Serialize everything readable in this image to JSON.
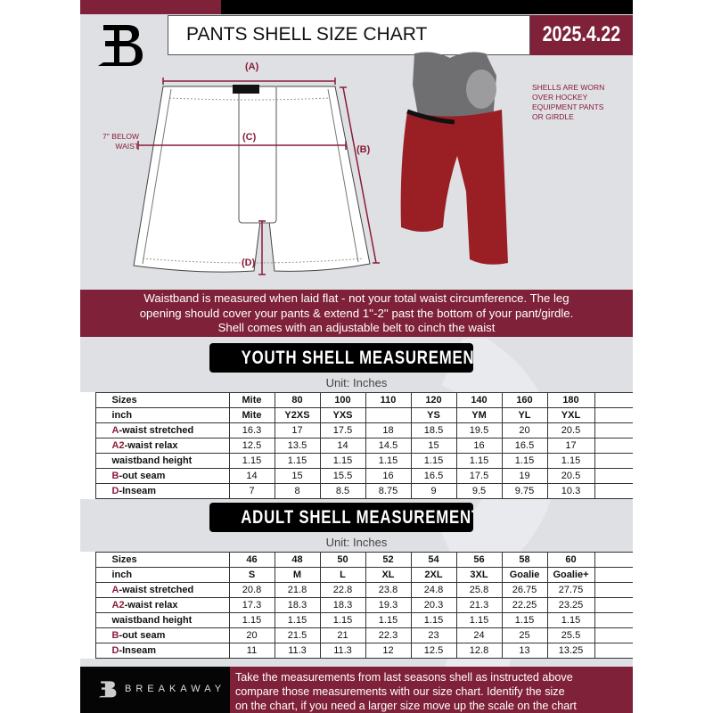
{
  "header": {
    "title": "PANTS SHELL SIZE CHART",
    "date": "2025.4.22",
    "logo_text": "B"
  },
  "diagram": {
    "label_a": "(A)",
    "label_b": "(B)",
    "label_c": "(C)",
    "label_d": "(D)",
    "c_note_line1": "7'' BELOW",
    "c_note_line2": "WAIST"
  },
  "photo_note": [
    "SHELLS ARE WORN",
    "OVER HOCKEY",
    "EQUIPMENT PANTS",
    "OR GIRDLE"
  ],
  "notice": [
    "Waistband is measured when laid flat - not your total waist circumference. The leg",
    "opening should cover your pants & extend 1''-2'' past the bottom of your pant/girdle.",
    "Shell comes with an adjustable belt to cinch the waist"
  ],
  "youth": {
    "heading": "YOUTH SHELL MEASUREMENTS",
    "unit": "Unit: Inches",
    "rows": [
      {
        "prefix": "",
        "label": "Sizes",
        "values": [
          "Mite",
          "80",
          "100",
          "110",
          "120",
          "140",
          "160",
          "180"
        ]
      },
      {
        "prefix": "",
        "label": "inch",
        "values": [
          "Mite",
          "Y2XS",
          "YXS",
          "",
          "YS",
          "YM",
          "YL",
          "YXL"
        ]
      },
      {
        "prefix": "A",
        "label": "-waist stretched",
        "values": [
          "16.3",
          "17",
          "17.5",
          "18",
          "18.5",
          "19.5",
          "20",
          "20.5"
        ]
      },
      {
        "prefix": "A2",
        "label": "-waist relax",
        "values": [
          "12.5",
          "13.5",
          "14",
          "14.5",
          "15",
          "16",
          "16.5",
          "17"
        ]
      },
      {
        "prefix": "",
        "label": "waistband height",
        "values": [
          "1.15",
          "1.15",
          "1.15",
          "1.15",
          "1.15",
          "1.15",
          "1.15",
          "1.15"
        ]
      },
      {
        "prefix": "B",
        "label": "-out seam",
        "values": [
          "14",
          "15",
          "15.5",
          "16",
          "16.5",
          "17.5",
          "19",
          "20.5"
        ]
      },
      {
        "prefix": "D",
        "label": "-Inseam",
        "values": [
          "7",
          "8",
          "8.5",
          "8.75",
          "9",
          "9.5",
          "9.75",
          "10.3"
        ]
      }
    ]
  },
  "adult": {
    "heading": "ADULT SHELL MEASUREMENTS",
    "unit": "Unit: Inches",
    "rows": [
      {
        "prefix": "",
        "label": "Sizes",
        "values": [
          "46",
          "48",
          "50",
          "52",
          "54",
          "56",
          "58",
          "60"
        ]
      },
      {
        "prefix": "",
        "label": "inch",
        "values": [
          "S",
          "M",
          "L",
          "XL",
          "2XL",
          "3XL",
          "Goalie",
          "Goalie+"
        ]
      },
      {
        "prefix": "A",
        "label": "-waist stretched",
        "values": [
          "20.8",
          "21.8",
          "22.8",
          "23.8",
          "24.8",
          "25.8",
          "26.75",
          "27.75"
        ]
      },
      {
        "prefix": "A2",
        "label": "-waist relax",
        "values": [
          "17.3",
          "18.3",
          "18.3",
          "19.3",
          "20.3",
          "21.3",
          "22.25",
          "23.25"
        ]
      },
      {
        "prefix": "",
        "label": "waistband height",
        "values": [
          "1.15",
          "1.15",
          "1.15",
          "1.15",
          "1.15",
          "1.15",
          "1.15",
          "1.15"
        ]
      },
      {
        "prefix": "B",
        "label": "-out seam",
        "values": [
          "20",
          "21.5",
          "21",
          "22.3",
          "23",
          "24",
          "25",
          "25.5"
        ]
      },
      {
        "prefix": "D",
        "label": "-Inseam",
        "values": [
          "11",
          "11.3",
          "11.3",
          "12",
          "12.5",
          "12.8",
          "13",
          "13.25"
        ]
      }
    ]
  },
  "footer": {
    "brand": "BREAKAWAY",
    "text": [
      "Take the measurements from last seasons shell as instructed above",
      "compare those measurements  with our size chart. Identify the size",
      "on the chart, if you need a larger size move up the scale on the chart"
    ]
  },
  "colors": {
    "maroon": "#7f2139",
    "accent_text": "#8a1c38",
    "background": "#dfe0e4"
  }
}
